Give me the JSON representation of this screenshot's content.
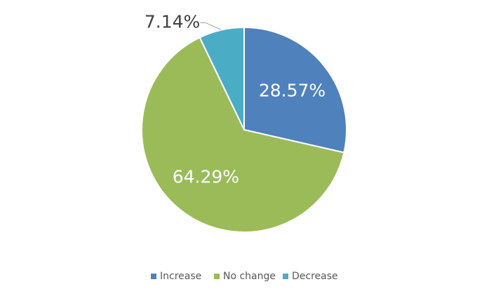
{
  "chart_data": {
    "type": "pie",
    "categories": [
      "Increase",
      "No change",
      "Decrease"
    ],
    "values": [
      28.57,
      64.29,
      7.14
    ],
    "value_labels": [
      "28.57%",
      "64.29%",
      "7.14%"
    ],
    "colors": [
      "#4f81bd",
      "#9bbb59",
      "#4bacc6"
    ],
    "legend": "bottom"
  }
}
